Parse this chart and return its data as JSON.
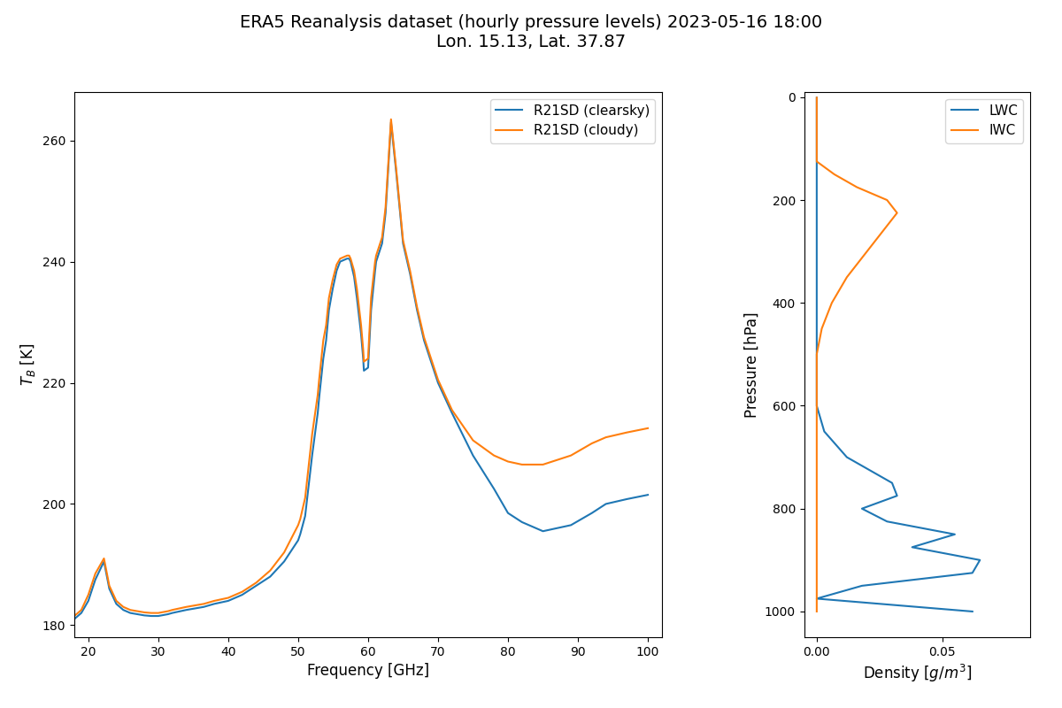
{
  "title": "ERA5 Reanalysis dataset (hourly pressure levels) 2023-05-16 18:00\nLon. 15.13, Lat. 37.87",
  "title_fontsize": 14,
  "left_xlabel": "Frequency [GHz]",
  "left_ylabel": "$T_B$ [K]",
  "right_xlabel": "Density [$g/m^3$]",
  "right_ylabel": "Pressure [hPa]",
  "color_blue": "#1f77b4",
  "color_orange": "#ff7f0e",
  "freq": [
    18.0,
    19.0,
    20.0,
    21.0,
    22.235,
    23.0,
    24.0,
    25.0,
    26.0,
    27.0,
    28.0,
    29.0,
    30.0,
    31.4,
    32.0,
    34.0,
    36.5,
    38.0,
    40.0,
    42.0,
    44.0,
    46.0,
    48.0,
    50.0,
    50.3,
    51.0,
    52.0,
    52.8,
    53.0,
    53.596,
    54.0,
    54.4,
    54.94,
    55.5,
    56.0,
    57.0,
    57.29,
    57.5,
    58.0,
    58.4,
    58.8,
    59.0,
    59.3,
    59.4,
    60.0,
    60.43,
    61.0,
    61.15,
    62.0,
    62.5,
    63.28,
    64.0,
    65.0,
    66.0,
    67.0,
    68.0,
    70.0,
    72.0,
    75.0,
    78.0,
    80.0,
    82.0,
    85.0,
    89.0,
    92.0,
    94.0,
    97.0,
    100.0
  ],
  "tb_clearsky": [
    181.0,
    182.0,
    184.0,
    187.5,
    190.5,
    186.0,
    183.5,
    182.5,
    182.0,
    181.8,
    181.6,
    181.5,
    181.5,
    181.8,
    182.0,
    182.5,
    183.0,
    183.5,
    184.0,
    185.0,
    186.5,
    188.0,
    190.5,
    194.0,
    195.0,
    198.0,
    208.0,
    215.0,
    217.5,
    224.0,
    227.0,
    232.0,
    235.5,
    238.5,
    240.0,
    240.5,
    240.5,
    240.0,
    237.5,
    234.0,
    230.0,
    228.0,
    224.0,
    222.0,
    222.5,
    232.0,
    238.5,
    240.0,
    243.0,
    248.0,
    263.0,
    255.0,
    243.0,
    238.0,
    232.0,
    227.0,
    220.0,
    215.0,
    208.0,
    202.5,
    198.5,
    197.0,
    195.5,
    196.5,
    198.5,
    200.0,
    200.8,
    201.5
  ],
  "tb_cloudy": [
    181.5,
    182.5,
    185.0,
    188.5,
    191.0,
    186.5,
    184.0,
    183.0,
    182.5,
    182.3,
    182.1,
    182.0,
    182.0,
    182.3,
    182.5,
    183.0,
    183.5,
    184.0,
    184.5,
    185.5,
    187.0,
    189.0,
    192.0,
    196.5,
    197.5,
    201.0,
    211.5,
    218.0,
    220.5,
    227.0,
    229.5,
    234.0,
    237.0,
    239.5,
    240.5,
    241.0,
    241.0,
    240.5,
    238.5,
    235.5,
    231.5,
    229.5,
    225.5,
    223.5,
    224.0,
    234.0,
    240.0,
    241.0,
    244.0,
    249.0,
    263.5,
    255.5,
    243.5,
    238.5,
    232.5,
    227.5,
    220.5,
    215.5,
    210.5,
    208.0,
    207.0,
    206.5,
    206.5,
    208.0,
    210.0,
    211.0,
    211.8,
    212.5
  ],
  "pressure_levels": [
    1,
    2,
    3,
    5,
    7,
    10,
    20,
    30,
    50,
    70,
    100,
    125,
    150,
    175,
    200,
    225,
    250,
    300,
    350,
    400,
    450,
    500,
    550,
    600,
    650,
    700,
    750,
    775,
    800,
    825,
    850,
    875,
    900,
    925,
    950,
    975,
    1000
  ],
  "lwc": [
    0.0,
    0.0,
    0.0,
    0.0,
    0.0,
    0.0,
    0.0,
    0.0,
    0.0,
    0.0,
    0.0,
    0.0,
    0.0,
    0.0,
    0.0,
    0.0,
    0.0,
    0.0,
    0.0,
    0.0,
    0.0,
    0.0,
    0.0,
    0.0,
    0.003,
    0.012,
    0.03,
    0.032,
    0.018,
    0.028,
    0.055,
    0.038,
    0.065,
    0.062,
    0.018,
    0.0,
    0.062
  ],
  "iwc": [
    0.0,
    0.0,
    0.0,
    0.0,
    0.0,
    0.0,
    0.0,
    0.0,
    0.0,
    0.0,
    0.0,
    0.0,
    0.007,
    0.016,
    0.028,
    0.032,
    0.028,
    0.02,
    0.012,
    0.006,
    0.002,
    0.0,
    0.0,
    0.0,
    0.0,
    0.0,
    0.0,
    0.0,
    0.0,
    0.0,
    0.0,
    0.0,
    0.0,
    0.0,
    0.0,
    0.0,
    0.0
  ],
  "left_xlim": [
    18,
    102
  ],
  "left_ylim": [
    178,
    268
  ],
  "right_xlim": [
    -0.005,
    0.085
  ],
  "right_ylim": [
    1050,
    -10
  ]
}
